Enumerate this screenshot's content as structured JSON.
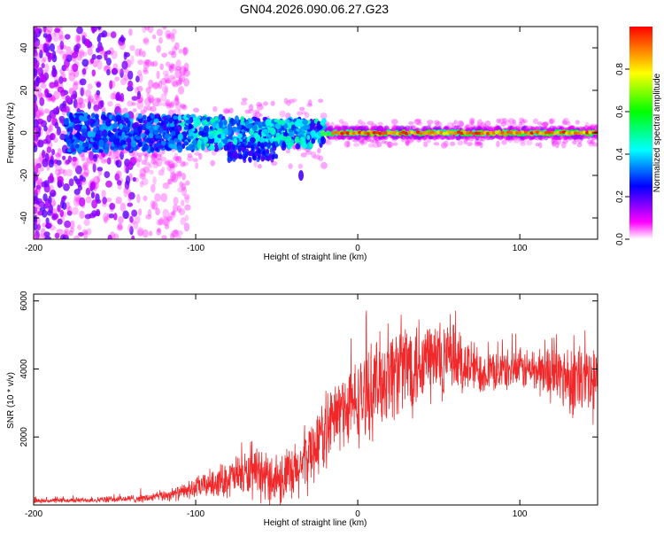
{
  "title": "GN04.2026.090.06.27.G23",
  "colors": {
    "spectrogram_low": "#e7d8ff",
    "spectrogram_mid": "#7a18ff",
    "snr_line": "#f0282a",
    "axis": "#000000",
    "colorbar_stops": [
      "#ffffff",
      "#ff00ff",
      "#0000ff",
      "#00ffff",
      "#00ff00",
      "#ffff00",
      "#ff0000"
    ]
  },
  "chart_data": [
    {
      "type": "heatmap",
      "title": "GN04.2026.090.06.27.G23",
      "xlabel": "Height of straight line (km)",
      "ylabel": "Frequency (Hz)",
      "xlim": [
        -200,
        148
      ],
      "ylim": [
        -50,
        50
      ],
      "xticks": [
        -200,
        -100,
        0,
        100
      ],
      "yticks": [
        -40,
        -20,
        0,
        20,
        40
      ],
      "colorbar": {
        "label": "Normalized spectral amplitude",
        "range": [
          0.0,
          1.0
        ],
        "ticks": [
          "0.0",
          "0.2",
          "0.4",
          "0.6",
          "0.8"
        ]
      },
      "features": [
        {
          "region": "x -200 to -125",
          "description": "broad low-amplitude scattered noise across all frequencies",
          "amplitude": 0.15
        },
        {
          "region": "x -180 to -20, f about 0",
          "description": "widening noisy band with amplitude 0.2-0.45",
          "amplitude": 0.3
        },
        {
          "region": "x -20 to 148, f about 0",
          "description": "narrow strong signal line near 0 Hz",
          "amplitude": 0.95
        },
        {
          "region": "x -35, f -20",
          "description": "isolated blob",
          "amplitude": 0.2
        }
      ]
    },
    {
      "type": "line",
      "xlabel": "Height of straight line (km)",
      "ylabel": "SNR (10 * v/v)",
      "xlim": [
        -200,
        148
      ],
      "ylim": [
        0,
        6200
      ],
      "xticks": [
        -200,
        -100,
        0,
        100
      ],
      "yticks": [
        2000,
        4000,
        6000
      ],
      "series": [
        {
          "name": "SNR",
          "envelope_x": [
            -200,
            -160,
            -130,
            -110,
            -90,
            -70,
            -55,
            -40,
            -20,
            -10,
            0,
            20,
            40,
            60,
            80,
            100,
            120,
            140,
            148
          ],
          "envelope_mean": [
            120,
            150,
            200,
            350,
            650,
            900,
            800,
            800,
            2200,
            2800,
            3000,
            3900,
            4300,
            4200,
            3900,
            4000,
            3900,
            3600,
            3500
          ],
          "envelope_spread": [
            80,
            100,
            150,
            250,
            500,
            800,
            900,
            1100,
            1300,
            1400,
            1500,
            1700,
            1800,
            1300,
            700,
            700,
            1000,
            1500,
            1600
          ]
        }
      ]
    }
  ]
}
